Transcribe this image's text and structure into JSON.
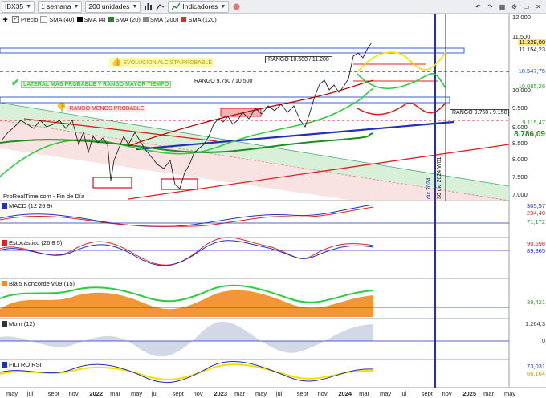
{
  "toolbar": {
    "symbol": "IBX35",
    "period": "1 semana",
    "units": "200 unidades",
    "indicators_label": "Indicadores"
  },
  "legend": [
    {
      "label": "Precio",
      "color": "#ffffff",
      "checked": true
    },
    {
      "label": "SMA (40)",
      "color": "#ffffff"
    },
    {
      "label": "SMA (4)",
      "color": "#000000"
    },
    {
      "label": "SMA (20)",
      "color": "#2e7d32"
    },
    {
      "label": "SMA (200)",
      "color": "#888888"
    },
    {
      "label": "SMA (120)",
      "color": "#d32f2f"
    }
  ],
  "annotations": {
    "alcista": "EVOLUCION ALCISTA PROBABLE",
    "lateral": "LATERAL MAS PROBABLE Y RANGO MAYOR TIEMPO",
    "rango_lateral": "RANGO 9.750 / 10.500",
    "rango_alto": "RANGO 10.500 / 11.200",
    "menos_probable": "RANGO MENOS PROBABLE",
    "rango_bajo": "RANGO 9.750 / 9.150",
    "dic2024": "dic 2024",
    "dic2024_v": "30 dic 2024 W01",
    "watermark": "ProRealTime.com - Fin de Día"
  },
  "price_axis": [
    "12.000",
    "11.500",
    "10.000",
    "9.500",
    "9.000",
    "8.500",
    "8.000",
    "7.500",
    "7.000"
  ],
  "price_tags": [
    {
      "label": "11.329,00",
      "color": "#333",
      "bg": "#ffe680"
    },
    {
      "label": "11.154,23",
      "color": "#333",
      "bg": "#ffffff"
    },
    {
      "label": "10.547,75",
      "color": "#1a3fbf",
      "bg": "#ffffff"
    },
    {
      "label": "10.085,26",
      "color": "#2e9d2e",
      "bg": "#ffffff"
    },
    {
      "label": "9.115,47",
      "color": "#2e9d2e",
      "bg": "#ffffff"
    },
    {
      "label": "8.786,09",
      "color": "#1e8e1e",
      "bg": "#ffffff"
    }
  ],
  "panes": {
    "macd": {
      "title": "MACD (12 26 9)",
      "tags": [
        "305,57",
        "234,40",
        "71,172"
      ]
    },
    "stoch": {
      "title": "Estocástico (26 8 5)",
      "tags": [
        "90,698",
        "89,865"
      ]
    },
    "blai": {
      "title": "Blai5 Koncorde v.09 (15)",
      "tags": [
        "39,421"
      ]
    },
    "mom": {
      "title": "Mom (12)",
      "tags": [
        "1.264,3",
        "0"
      ]
    },
    "rsi": {
      "title": "FILTRO RSI",
      "tags": [
        "73,031",
        "66,164"
      ]
    }
  },
  "x_axis": [
    "may",
    "jul",
    "sept",
    "nov",
    "2022",
    "mar",
    "may",
    "jul",
    "sept",
    "nov",
    "2023",
    "mar",
    "may",
    "jul",
    "sept",
    "nov",
    "2024",
    "mar",
    "may",
    "jul",
    "sept",
    "nov",
    "2025",
    "mar",
    "may"
  ],
  "colors": {
    "blue_line": "#1f2fbf",
    "red_line": "#e02020",
    "green": "#2ecc40",
    "yellow": "#f5e000"
  }
}
